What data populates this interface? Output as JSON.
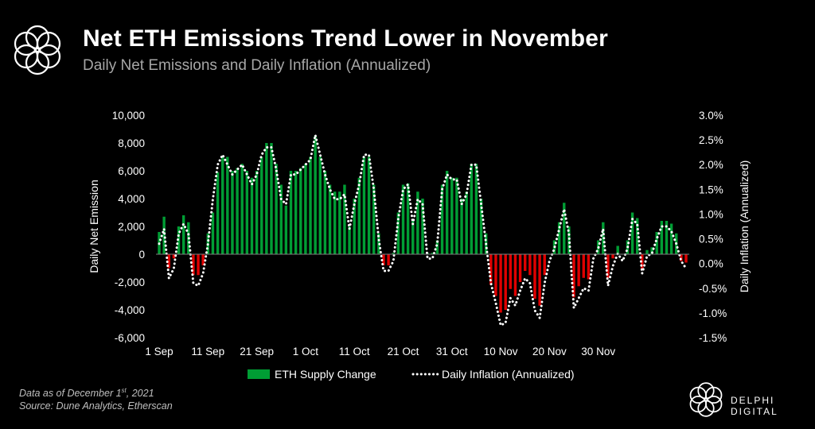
{
  "header": {
    "title": "Net ETH Emissions Trend Lower in November",
    "subtitle": "Daily Net Emissions and Daily Inflation (Annualized)",
    "logo_icon": "flower-logo-icon"
  },
  "footer": {
    "note_prefix": "Data as of December 1",
    "note_sup": "st",
    "note_suffix": ", 2021",
    "source": "Source: Dune Analytics, Etherscan",
    "brand_name": "DELPHI DIGITAL",
    "brand_icon": "delphi-logo-icon"
  },
  "colors": {
    "positive": "#009d34",
    "negative": "#e00000",
    "line": "#ffffff",
    "plot_bg": "#000000"
  },
  "chart_data": {
    "type": "bar",
    "ylabel": "Daily Net Emission",
    "y2label": "Daily Inflation (Annualized)",
    "ylim": [
      -6000,
      10000
    ],
    "y2lim": [
      -1.5,
      3.0
    ],
    "yticks": [
      "10,000",
      "8,000",
      "6,000",
      "4,000",
      "2,000",
      "0",
      "-2,000",
      "-4,000",
      "-6,000"
    ],
    "y2ticks": [
      "3.0%",
      "2.5%",
      "2.0%",
      "1.5%",
      "1.0%",
      "0.5%",
      "0.0%",
      "-0.5%",
      "-1.0%",
      "-1.5%"
    ],
    "xticks": [
      "1 Sep",
      "11 Sep",
      "21 Sep",
      "1 Oct",
      "11 Oct",
      "21 Oct",
      "31 Oct",
      "10 Nov",
      "20 Nov",
      "30 Nov"
    ],
    "legend": [
      "ETH Supply Change",
      "Daily Inflation (Annualized)"
    ],
    "grid": false,
    "legend_position": "bottom",
    "series": [
      {
        "name": "ETH Supply Change",
        "type": "bar",
        "values": [
          1600,
          2700,
          -1000,
          -300,
          2000,
          2800,
          2300,
          -1500,
          -1500,
          -800,
          1500,
          3000,
          5900,
          7000,
          7000,
          6000,
          6200,
          6500,
          6000,
          5500,
          6000,
          7000,
          8000,
          8000,
          6500,
          5000,
          3500,
          6000,
          6000,
          6200,
          6500,
          7000,
          8500,
          7000,
          6000,
          5000,
          4500,
          4500,
          5000,
          2000,
          4000,
          5500,
          7000,
          7000,
          5000,
          1500,
          -800,
          -800,
          100,
          3000,
          5000,
          5100,
          2500,
          4500,
          4000,
          100,
          100,
          1000,
          5000,
          6000,
          5500,
          5500,
          4000,
          4500,
          6500,
          6500,
          4000,
          1500,
          -2200,
          -3000,
          -4200,
          -4000,
          -2500,
          -3000,
          -2000,
          -1200,
          -1500,
          -3200,
          -3700,
          -1500,
          0,
          1000,
          2300,
          3700,
          2000,
          -3100,
          -2300,
          -1700,
          -1800,
          0,
          1000,
          2300,
          -1700,
          -300,
          600,
          0,
          1000,
          3000,
          2600,
          -1100,
          300,
          500,
          1600,
          2400,
          2400,
          2200,
          1500,
          -500,
          -600
        ]
      },
      {
        "name": "Daily Inflation (Annualized)",
        "type": "line",
        "values": [
          0.4,
          0.7,
          -0.3,
          -0.1,
          0.6,
          0.8,
          0.6,
          -0.4,
          -0.45,
          -0.2,
          0.4,
          1.3,
          2.0,
          2.2,
          2.0,
          1.8,
          1.9,
          2.0,
          1.8,
          1.6,
          1.8,
          2.2,
          2.35,
          2.35,
          1.9,
          1.3,
          1.2,
          1.8,
          1.8,
          1.9,
          2.0,
          2.1,
          2.6,
          2.2,
          1.8,
          1.5,
          1.3,
          1.3,
          1.4,
          0.7,
          1.2,
          1.6,
          2.2,
          2.2,
          1.5,
          0.5,
          -0.15,
          -0.15,
          0.05,
          0.9,
          1.5,
          1.6,
          0.8,
          1.3,
          1.2,
          0.1,
          0.1,
          0.4,
          1.5,
          1.8,
          1.7,
          1.7,
          1.2,
          1.4,
          2.0,
          2.0,
          1.2,
          0.4,
          -0.4,
          -0.8,
          -1.25,
          -1.2,
          -0.7,
          -0.85,
          -0.55,
          -0.3,
          -0.4,
          -0.95,
          -1.1,
          -0.4,
          0.05,
          0.3,
          0.7,
          1.1,
          0.6,
          -0.9,
          -0.7,
          -0.5,
          -0.55,
          0.1,
          0.3,
          0.7,
          -0.45,
          -0.05,
          0.2,
          0.05,
          0.3,
          0.9,
          0.8,
          -0.2,
          0.15,
          0.2,
          0.5,
          0.75,
          0.75,
          0.65,
          0.4,
          0.05,
          -0.1
        ]
      }
    ]
  }
}
